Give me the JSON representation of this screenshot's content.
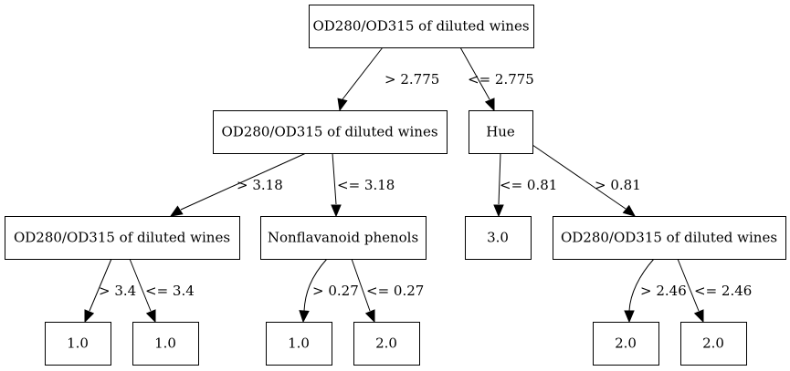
{
  "colors": {
    "node_stroke": "#000000",
    "node_fill": "#ffffff",
    "edge": "#000000",
    "text": "#000000",
    "background": "#ffffff"
  },
  "nodes": [
    {
      "id": "n0",
      "label": "OD280/OD315 of diluted wines"
    },
    {
      "id": "n1",
      "label": "OD280/OD315 of diluted wines"
    },
    {
      "id": "n2",
      "label": "Hue"
    },
    {
      "id": "n3",
      "label": "OD280/OD315 of diluted wines"
    },
    {
      "id": "n4",
      "label": "Nonflavanoid phenols"
    },
    {
      "id": "n5",
      "label": "3.0"
    },
    {
      "id": "n6",
      "label": "OD280/OD315 of diluted wines"
    },
    {
      "id": "n7",
      "label": "1.0"
    },
    {
      "id": "n8",
      "label": "1.0"
    },
    {
      "id": "n9",
      "label": "1.0"
    },
    {
      "id": "n10",
      "label": "2.0"
    },
    {
      "id": "n11",
      "label": "2.0"
    },
    {
      "id": "n12",
      "label": "2.0"
    }
  ],
  "edges": [
    {
      "from": "n0",
      "to": "n1",
      "label": "> 2.775"
    },
    {
      "from": "n0",
      "to": "n2",
      "label": "<= 2.775"
    },
    {
      "from": "n1",
      "to": "n3",
      "label": "> 3.18"
    },
    {
      "from": "n1",
      "to": "n4",
      "label": "<= 3.18"
    },
    {
      "from": "n2",
      "to": "n5",
      "label": "<= 0.81"
    },
    {
      "from": "n2",
      "to": "n6",
      "label": "> 0.81"
    },
    {
      "from": "n3",
      "to": "n7",
      "label": "> 3.4"
    },
    {
      "from": "n3",
      "to": "n8",
      "label": "<= 3.4"
    },
    {
      "from": "n4",
      "to": "n9",
      "label": "> 0.27"
    },
    {
      "from": "n4",
      "to": "n10",
      "label": "<= 0.27"
    },
    {
      "from": "n6",
      "to": "n11",
      "label": "> 2.46"
    },
    {
      "from": "n6",
      "to": "n12",
      "label": "<= 2.46"
    }
  ]
}
